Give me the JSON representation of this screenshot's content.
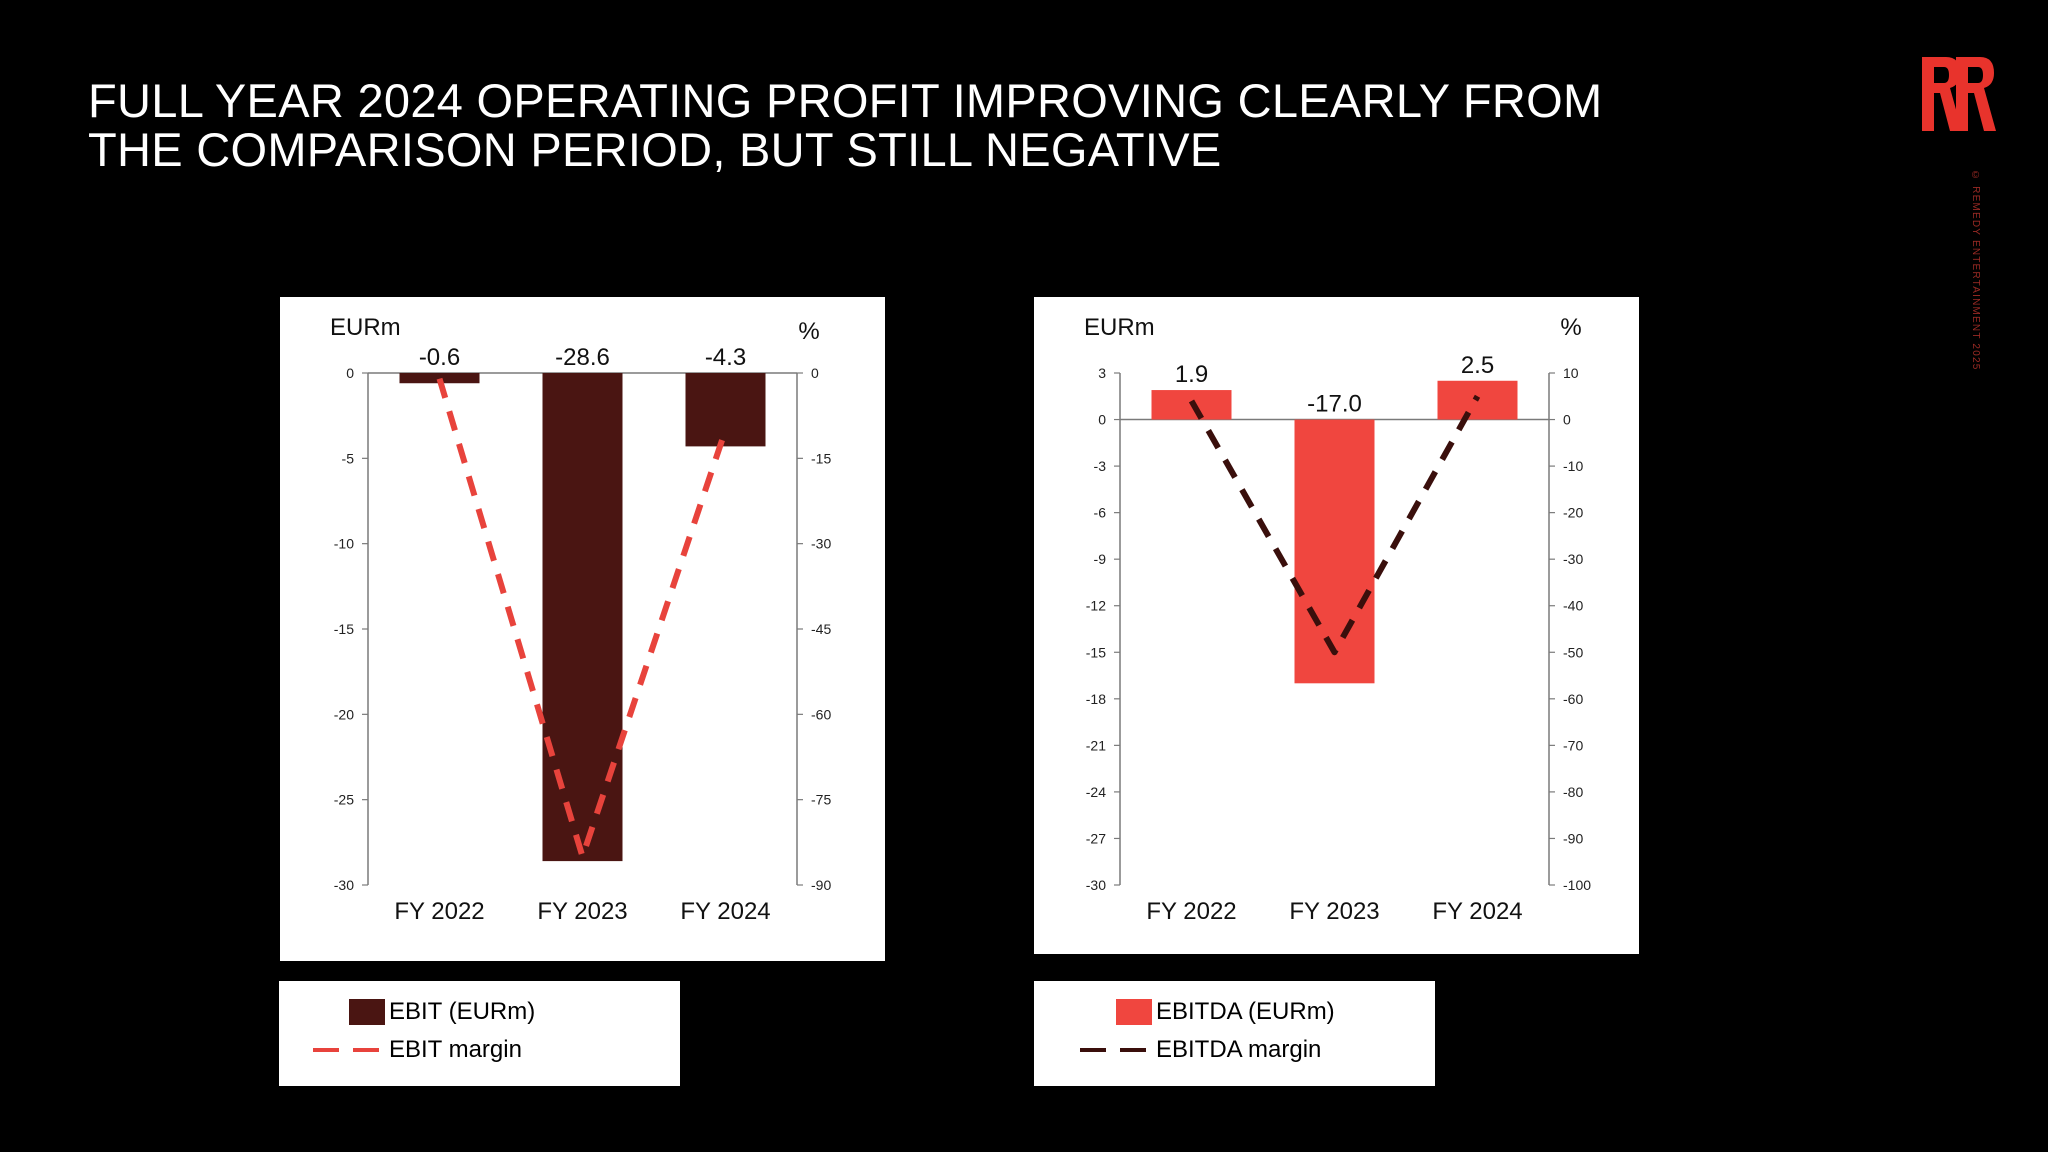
{
  "slide": {
    "title_lines": [
      "FULL YEAR 2024 OPERATING PROFIT IMPROVING CLEARLY FROM",
      "THE COMPARISON PERIOD, BUT STILL NEGATIVE"
    ],
    "copyright": "© REMEDY ENTERTAINMENT 2025",
    "logo": "remedy-rr-logo",
    "colors": {
      "background": "#000000",
      "brand_red": "#e8332c"
    }
  },
  "chart_data": [
    {
      "type": "bar",
      "categories": [
        "FY 2022",
        "FY 2023",
        "FY 2024"
      ],
      "y_unit": "EURm",
      "y2_unit": "%",
      "ylim": [
        -30,
        0
      ],
      "yticks": [
        0,
        -5,
        -10,
        -15,
        -20,
        -25,
        -30
      ],
      "y2lim": [
        -90,
        0
      ],
      "y2ticks": [
        0,
        -15,
        -30,
        -45,
        -60,
        -75,
        -90
      ],
      "series": [
        {
          "name": "EBIT (EURm)",
          "kind": "bar",
          "axis": "left",
          "color": "#4a1512",
          "values": [
            -0.6,
            -28.6,
            -4.3
          ],
          "labels": [
            "-0.6",
            "-28.6",
            "-4.3"
          ]
        },
        {
          "name": "EBIT margin",
          "kind": "dashed-line",
          "axis": "right",
          "color": "#e8433c",
          "values": [
            -1.0,
            -85.0,
            -10.0
          ]
        }
      ],
      "legend_placement": "below"
    },
    {
      "type": "bar",
      "categories": [
        "FY 2022",
        "FY 2023",
        "FY 2024"
      ],
      "y_unit": "EURm",
      "y2_unit": "%",
      "ylim": [
        -30,
        3
      ],
      "yticks": [
        3,
        0,
        -3,
        -6,
        -9,
        -12,
        -15,
        -18,
        -21,
        -24,
        -27,
        -30
      ],
      "y2lim": [
        -100,
        10
      ],
      "y2ticks": [
        10,
        0,
        -10,
        -20,
        -30,
        -40,
        -50,
        -60,
        -70,
        -80,
        -90,
        -100
      ],
      "series": [
        {
          "name": "EBITDA (EURm)",
          "kind": "bar",
          "axis": "left",
          "color": "#f0463f",
          "values": [
            1.9,
            -17.0,
            2.5
          ],
          "labels": [
            "1.9",
            "-17.0",
            "2.5"
          ]
        },
        {
          "name": "EBITDA margin",
          "kind": "dashed-line",
          "axis": "right",
          "color": "#3a0f0c",
          "values": [
            4.0,
            -50.0,
            5.0
          ]
        }
      ],
      "legend_placement": "below"
    }
  ]
}
